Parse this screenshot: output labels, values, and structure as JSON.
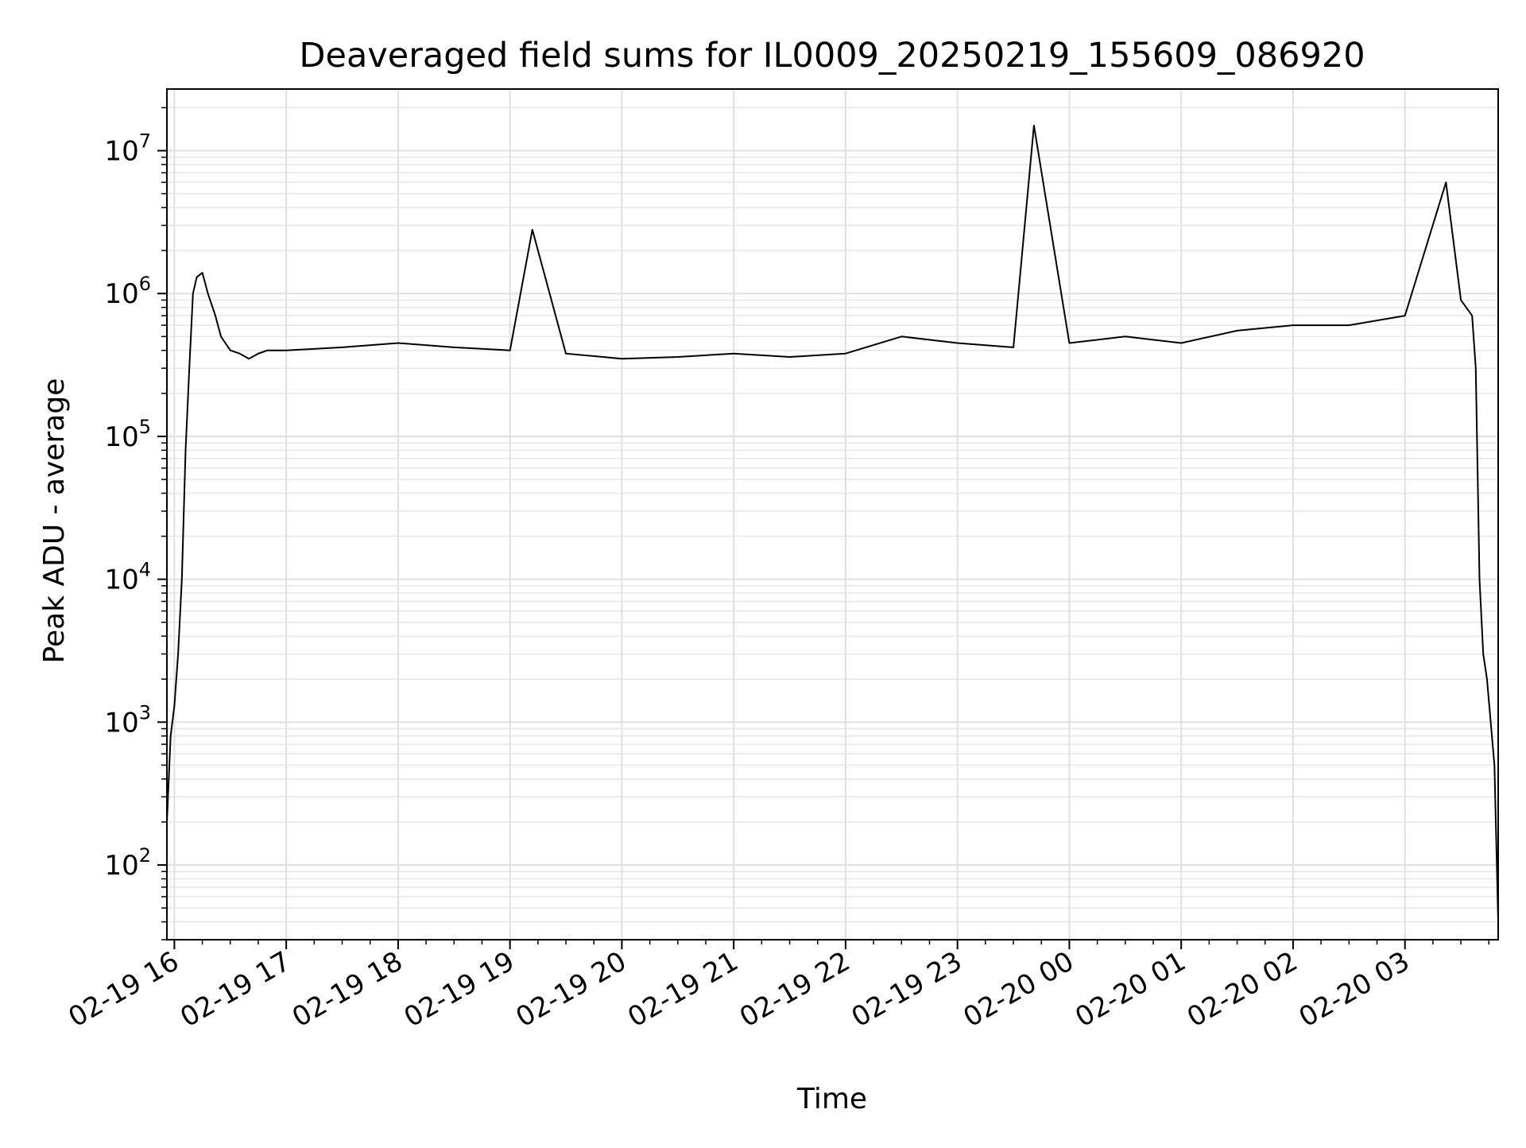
{
  "chart_data": {
    "type": "line",
    "title": "Deaveraged field sums for IL0009_20250219_155609_086920",
    "xlabel": "Time",
    "ylabel": "Peak ADU - average",
    "yscale": "log",
    "ylim": [
      30,
      27000000
    ],
    "xlim": [
      "2025-02-19 15:56",
      "2025-02-20 03:50"
    ],
    "grid": true,
    "line_color": "#000000",
    "x_ticks": [
      "02-19 16",
      "02-19 17",
      "02-19 18",
      "02-19 19",
      "02-19 20",
      "02-19 21",
      "02-19 22",
      "02-19 23",
      "02-20 00",
      "02-20 01",
      "02-20 02",
      "02-20 03"
    ],
    "y_ticks": [
      {
        "base": "10",
        "exp": "2",
        "value": 100
      },
      {
        "base": "10",
        "exp": "3",
        "value": 1000
      },
      {
        "base": "10",
        "exp": "4",
        "value": 10000
      },
      {
        "base": "10",
        "exp": "5",
        "value": 100000
      },
      {
        "base": "10",
        "exp": "6",
        "value": 1000000
      },
      {
        "base": "10",
        "exp": "7",
        "value": 10000000
      }
    ],
    "series": [
      {
        "x": [
          "2025-02-19 15:56",
          "2025-02-19 15:58",
          "2025-02-19 16:00",
          "2025-02-19 16:02",
          "2025-02-19 16:04",
          "2025-02-19 16:06",
          "2025-02-19 16:08",
          "2025-02-19 16:10",
          "2025-02-19 16:12",
          "2025-02-19 16:15",
          "2025-02-19 16:18",
          "2025-02-19 16:22",
          "2025-02-19 16:25",
          "2025-02-19 16:30",
          "2025-02-19 16:35",
          "2025-02-19 16:40",
          "2025-02-19 16:45",
          "2025-02-19 16:50",
          "2025-02-19 17:00",
          "2025-02-19 17:30",
          "2025-02-19 18:00",
          "2025-02-19 18:30",
          "2025-02-19 19:00",
          "2025-02-19 19:12",
          "2025-02-19 19:30",
          "2025-02-19 20:00",
          "2025-02-19 20:30",
          "2025-02-19 21:00",
          "2025-02-19 21:30",
          "2025-02-19 22:00",
          "2025-02-19 22:30",
          "2025-02-19 23:00",
          "2025-02-19 23:30",
          "2025-02-19 23:41",
          "2025-02-20 00:00",
          "2025-02-20 00:30",
          "2025-02-20 01:00",
          "2025-02-20 01:30",
          "2025-02-20 02:00",
          "2025-02-20 02:30",
          "2025-02-20 03:00",
          "2025-02-20 03:22",
          "2025-02-20 03:30",
          "2025-02-20 03:36",
          "2025-02-20 03:38",
          "2025-02-20 03:40",
          "2025-02-20 03:42",
          "2025-02-20 03:44",
          "2025-02-20 03:46",
          "2025-02-20 03:48",
          "2025-02-20 03:50"
        ],
        "y": [
          200,
          800,
          1300,
          3000,
          10000,
          80000,
          300000,
          1000000,
          1300000,
          1400000,
          1000000,
          700000,
          500000,
          400000,
          380000,
          350000,
          380000,
          400000,
          400000,
          420000,
          450000,
          420000,
          400000,
          2800000,
          380000,
          350000,
          360000,
          380000,
          360000,
          380000,
          500000,
          450000,
          420000,
          15000000,
          450000,
          500000,
          450000,
          550000,
          600000,
          600000,
          700000,
          6000000,
          900000,
          700000,
          300000,
          10000,
          3000,
          2000,
          1000,
          500,
          40
        ]
      }
    ]
  }
}
